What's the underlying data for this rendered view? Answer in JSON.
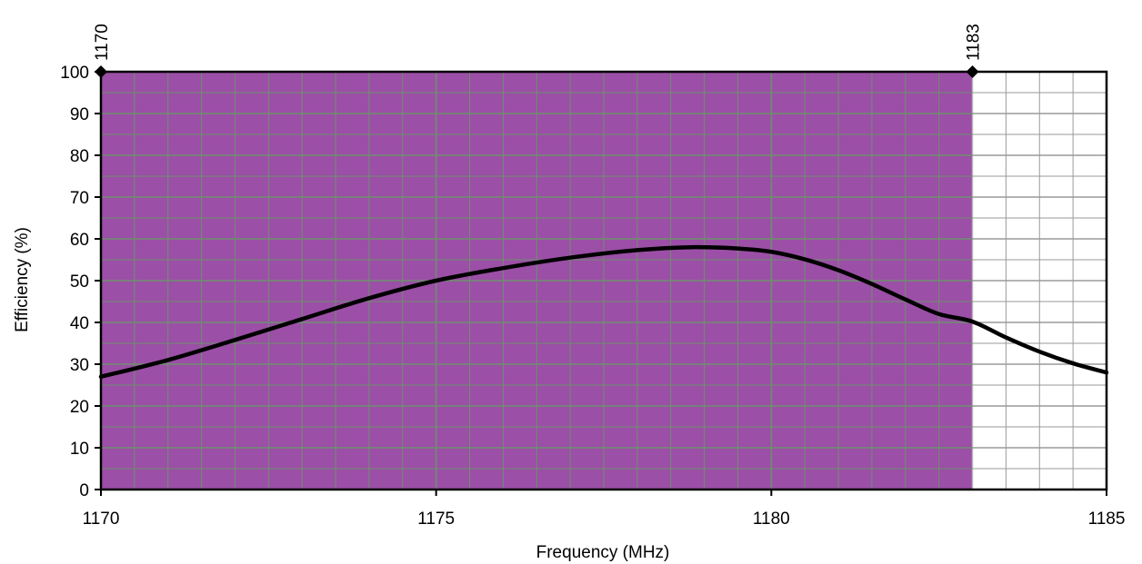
{
  "chart_data": {
    "type": "line",
    "title": "",
    "xlabel": "Frequency (MHz)",
    "ylabel": "Efficiency (%)",
    "xlim": [
      1170,
      1185
    ],
    "ylim": [
      0,
      100
    ],
    "x_ticks": [
      1170,
      1175,
      1180,
      1185
    ],
    "y_ticks": [
      0,
      10,
      20,
      30,
      40,
      50,
      60,
      70,
      80,
      90,
      100
    ],
    "x_minor_step": 0.5,
    "y_minor_step": 5,
    "grid": true,
    "legend": "none",
    "band": {
      "x_start": 1170,
      "x_end": 1183,
      "y_top": 100,
      "color": "#9b4fa6",
      "start_label": "1170",
      "end_label": "1183"
    },
    "series": [
      {
        "color": "#000000",
        "x": [
          1170,
          1171,
          1172,
          1173,
          1174,
          1175,
          1176,
          1177,
          1178,
          1178.8,
          1179.5,
          1180,
          1180.5,
          1181,
          1181.5,
          1182,
          1182.5,
          1183,
          1183.5,
          1184,
          1184.5,
          1185
        ],
        "y": [
          27,
          31,
          35.8,
          40.8,
          45.8,
          50,
          53,
          55.5,
          57.3,
          58,
          57.7,
          56.9,
          55.1,
          52.5,
          49.2,
          45.5,
          42,
          40.2,
          36.4,
          33,
          30.2,
          28
        ]
      }
    ],
    "colors": {
      "grid_on_band": "#6e8f6e",
      "grid_outside": "#9a9a9a",
      "axis": "#000000"
    }
  }
}
